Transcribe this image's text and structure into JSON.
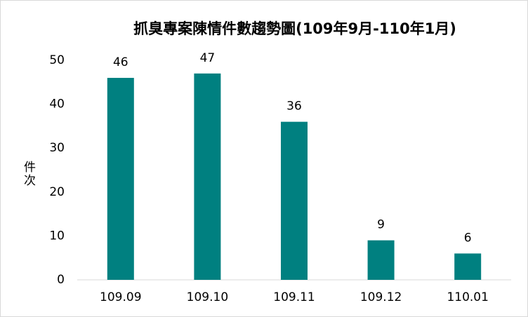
{
  "chart_data": {
    "type": "bar",
    "title": "抓臭專案陳情件數趨勢圖(109年9月-110年1月)",
    "y_label": "件次",
    "categories": [
      "109.09",
      "109.10",
      "109.11",
      "109.12",
      "110.01"
    ],
    "values": [
      46,
      47,
      36,
      9,
      6
    ],
    "color": "#008080",
    "ylim": [
      0,
      50
    ],
    "yticks": [
      0,
      10,
      20,
      30,
      40,
      50
    ],
    "grid": false
  }
}
